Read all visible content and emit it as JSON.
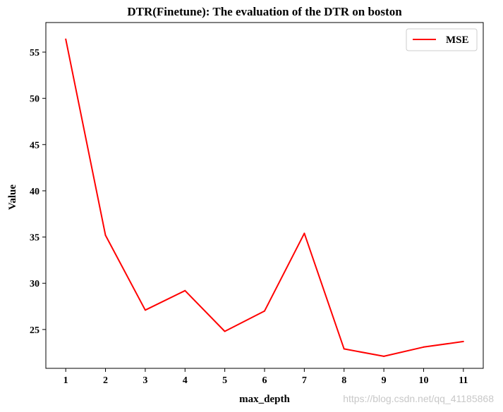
{
  "chart_data": {
    "type": "line",
    "title": "DTR(Finetune): The evaluation of the DTR on boston",
    "xlabel": "max_depth",
    "ylabel": "Value",
    "x": [
      1,
      2,
      3,
      4,
      5,
      6,
      7,
      8,
      9,
      10,
      11
    ],
    "x_tick_labels": [
      "1",
      "2",
      "3",
      "4",
      "5",
      "6",
      "7",
      "8",
      "9",
      "10",
      "11"
    ],
    "y_ticks": [
      25,
      30,
      35,
      40,
      45,
      50,
      55
    ],
    "y_tick_labels": [
      "25",
      "30",
      "35",
      "40",
      "45",
      "50",
      "55"
    ],
    "xlim": [
      0.5,
      11.5
    ],
    "ylim": [
      20.8,
      58.2
    ],
    "grid": false,
    "legend": {
      "placement": "top-right",
      "entries": [
        "MSE"
      ]
    },
    "series": [
      {
        "name": "MSE",
        "color": "#ff0000",
        "values": [
          56.4,
          35.2,
          27.1,
          29.2,
          24.8,
          27.0,
          35.4,
          22.9,
          22.1,
          23.1,
          23.7
        ]
      }
    ]
  },
  "watermark": "https://blog.csdn.net/qq_41185868"
}
